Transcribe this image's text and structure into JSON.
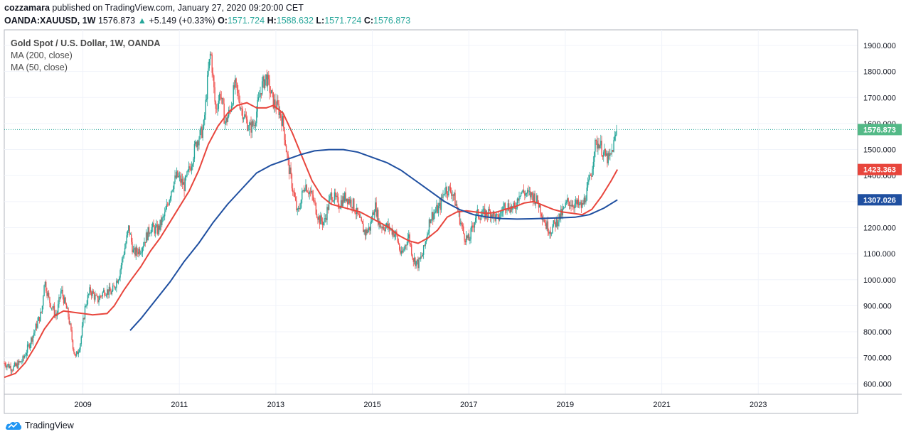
{
  "header": {
    "author": "cozzamara",
    "published_text": "published on TradingView.com, January 27, 2020 09:20:00 CET",
    "symbol": "OANDA:XAUUSD, 1W",
    "last": "1576.873",
    "up_arrow": "▲",
    "change": "+5.149 (+0.33%)",
    "o_label": "O:",
    "o_value": "1571.724",
    "h_label": "H:",
    "h_value": "1588.632",
    "l_label": "L:",
    "l_value": "1571.724",
    "c_label": "C:",
    "c_value": "1576.873"
  },
  "legend": {
    "title": "Gold Spot / U.S. Dollar, 1W, OANDA",
    "ma200": "MA (200, close)",
    "ma50": "MA (50, close)"
  },
  "brand": {
    "name": "TradingView",
    "icon": "tradingview-cloud-icon"
  },
  "colors": {
    "up": "#26a69a",
    "down": "#ef5350",
    "ma50": "#e8453c",
    "ma200": "#1f4fa0",
    "last_price_bg": "#53b987",
    "grid": "#f0f3fa",
    "axis": "#b2b5be"
  },
  "chart_data": {
    "type": "line",
    "title": "Gold Spot / U.S. Dollar, 1W, OANDA",
    "xlabel": "",
    "ylabel": "",
    "x_ticks": [
      "2009",
      "2011",
      "2013",
      "2015",
      "2017",
      "2019",
      "2021",
      "2023"
    ],
    "xlim": [
      2007.37,
      2025.06
    ],
    "y_ticks": [
      "600.000",
      "700.000",
      "800.000",
      "900.000",
      "1000.000",
      "1100.000",
      "1200.000",
      "1300.000",
      "1400.000",
      "1500.000",
      "1600.000",
      "1700.000",
      "1800.000",
      "1900.000"
    ],
    "ylim": [
      560,
      1960
    ],
    "grid": true,
    "price_labels": [
      {
        "name": "last",
        "value": 1576.873,
        "text": "1576.873",
        "color": "#53b987"
      },
      {
        "name": "ma50",
        "value": 1423.363,
        "text": "1423.363",
        "color": "#e8453c"
      },
      {
        "name": "ma200",
        "value": 1307.026,
        "text": "1307.026",
        "color": "#1f4fa0"
      }
    ],
    "price_path": [
      [
        2007.37,
        680
      ],
      [
        2007.55,
        660
      ],
      [
        2007.75,
        690
      ],
      [
        2007.95,
        780
      ],
      [
        2008.15,
        880
      ],
      [
        2008.2,
        1000
      ],
      [
        2008.3,
        920
      ],
      [
        2008.45,
        860
      ],
      [
        2008.55,
        960
      ],
      [
        2008.7,
        860
      ],
      [
        2008.8,
        740
      ],
      [
        2008.85,
        700
      ],
      [
        2008.95,
        760
      ],
      [
        2009.05,
        900
      ],
      [
        2009.15,
        960
      ],
      [
        2009.3,
        920
      ],
      [
        2009.45,
        960
      ],
      [
        2009.6,
        950
      ],
      [
        2009.75,
        1020
      ],
      [
        2009.9,
        1150
      ],
      [
        2009.95,
        1200
      ],
      [
        2010.05,
        1100
      ],
      [
        2010.2,
        1120
      ],
      [
        2010.4,
        1200
      ],
      [
        2010.55,
        1190
      ],
      [
        2010.7,
        1250
      ],
      [
        2010.85,
        1360
      ],
      [
        2010.95,
        1400
      ],
      [
        2011.1,
        1360
      ],
      [
        2011.25,
        1450
      ],
      [
        2011.35,
        1530
      ],
      [
        2011.5,
        1580
      ],
      [
        2011.6,
        1800
      ],
      [
        2011.65,
        1880
      ],
      [
        2011.75,
        1650
      ],
      [
        2011.85,
        1720
      ],
      [
        2011.95,
        1600
      ],
      [
        2012.05,
        1650
      ],
      [
        2012.15,
        1750
      ],
      [
        2012.3,
        1650
      ],
      [
        2012.45,
        1580
      ],
      [
        2012.55,
        1600
      ],
      [
        2012.7,
        1740
      ],
      [
        2012.8,
        1780
      ],
      [
        2012.95,
        1680
      ],
      [
        2013.05,
        1660
      ],
      [
        2013.15,
        1600
      ],
      [
        2013.25,
        1450
      ],
      [
        2013.35,
        1350
      ],
      [
        2013.45,
        1250
      ],
      [
        2013.6,
        1370
      ],
      [
        2013.75,
        1320
      ],
      [
        2013.9,
        1230
      ],
      [
        2014.0,
        1220
      ],
      [
        2014.15,
        1330
      ],
      [
        2014.3,
        1290
      ],
      [
        2014.45,
        1320
      ],
      [
        2014.6,
        1290
      ],
      [
        2014.75,
        1220
      ],
      [
        2014.85,
        1180
      ],
      [
        2014.95,
        1200
      ],
      [
        2015.05,
        1290
      ],
      [
        2015.15,
        1210
      ],
      [
        2015.35,
        1200
      ],
      [
        2015.5,
        1170
      ],
      [
        2015.6,
        1090
      ],
      [
        2015.75,
        1170
      ],
      [
        2015.85,
        1080
      ],
      [
        2015.95,
        1060
      ],
      [
        2016.05,
        1100
      ],
      [
        2016.2,
        1240
      ],
      [
        2016.4,
        1280
      ],
      [
        2016.5,
        1350
      ],
      [
        2016.65,
        1340
      ],
      [
        2016.75,
        1280
      ],
      [
        2016.9,
        1170
      ],
      [
        2017.0,
        1150
      ],
      [
        2017.15,
        1250
      ],
      [
        2017.3,
        1250
      ],
      [
        2017.45,
        1260
      ],
      [
        2017.6,
        1230
      ],
      [
        2017.75,
        1290
      ],
      [
        2017.95,
        1270
      ],
      [
        2018.05,
        1340
      ],
      [
        2018.2,
        1330
      ],
      [
        2018.35,
        1320
      ],
      [
        2018.45,
        1290
      ],
      [
        2018.6,
        1210
      ],
      [
        2018.7,
        1190
      ],
      [
        2018.8,
        1220
      ],
      [
        2018.95,
        1260
      ],
      [
        2019.05,
        1300
      ],
      [
        2019.2,
        1290
      ],
      [
        2019.35,
        1280
      ],
      [
        2019.45,
        1340
      ],
      [
        2019.55,
        1420
      ],
      [
        2019.6,
        1510
      ],
      [
        2019.7,
        1530
      ],
      [
        2019.8,
        1480
      ],
      [
        2019.9,
        1460
      ],
      [
        2019.95,
        1480
      ],
      [
        2020.05,
        1560
      ],
      [
        2020.08,
        1576.873
      ]
    ],
    "series": [
      {
        "name": "MA (50, close)",
        "color": "#e8453c",
        "points": [
          [
            2007.37,
            625
          ],
          [
            2007.6,
            640
          ],
          [
            2007.8,
            680
          ],
          [
            2008.0,
            740
          ],
          [
            2008.2,
            810
          ],
          [
            2008.4,
            860
          ],
          [
            2008.6,
            880
          ],
          [
            2008.8,
            875
          ],
          [
            2009.0,
            870
          ],
          [
            2009.2,
            865
          ],
          [
            2009.5,
            870
          ],
          [
            2009.65,
            900
          ],
          [
            2009.85,
            960
          ],
          [
            2010.0,
            1000
          ],
          [
            2010.2,
            1050
          ],
          [
            2010.4,
            1110
          ],
          [
            2010.6,
            1160
          ],
          [
            2010.8,
            1220
          ],
          [
            2011.0,
            1280
          ],
          [
            2011.2,
            1340
          ],
          [
            2011.4,
            1420
          ],
          [
            2011.6,
            1520
          ],
          [
            2011.8,
            1590
          ],
          [
            2012.0,
            1640
          ],
          [
            2012.2,
            1670
          ],
          [
            2012.4,
            1680
          ],
          [
            2012.6,
            1660
          ],
          [
            2012.8,
            1660
          ],
          [
            2012.95,
            1670
          ],
          [
            2013.15,
            1640
          ],
          [
            2013.35,
            1560
          ],
          [
            2013.55,
            1470
          ],
          [
            2013.75,
            1380
          ],
          [
            2013.95,
            1320
          ],
          [
            2014.15,
            1290
          ],
          [
            2014.35,
            1280
          ],
          [
            2014.55,
            1270
          ],
          [
            2014.75,
            1260
          ],
          [
            2014.95,
            1240
          ],
          [
            2015.15,
            1220
          ],
          [
            2015.35,
            1200
          ],
          [
            2015.55,
            1170
          ],
          [
            2015.75,
            1150
          ],
          [
            2015.95,
            1140
          ],
          [
            2016.15,
            1160
          ],
          [
            2016.35,
            1190
          ],
          [
            2016.55,
            1240
          ],
          [
            2016.75,
            1260
          ],
          [
            2016.95,
            1265
          ],
          [
            2017.15,
            1260
          ],
          [
            2017.35,
            1255
          ],
          [
            2017.55,
            1258
          ],
          [
            2017.75,
            1270
          ],
          [
            2017.95,
            1280
          ],
          [
            2018.15,
            1295
          ],
          [
            2018.35,
            1300
          ],
          [
            2018.55,
            1285
          ],
          [
            2018.75,
            1270
          ],
          [
            2018.95,
            1260
          ],
          [
            2019.15,
            1255
          ],
          [
            2019.35,
            1250
          ],
          [
            2019.55,
            1270
          ],
          [
            2019.75,
            1320
          ],
          [
            2019.95,
            1380
          ],
          [
            2020.08,
            1423.363
          ]
        ]
      },
      {
        "name": "MA (200, close)",
        "color": "#1f4fa0",
        "points": [
          [
            2009.98,
            805
          ],
          [
            2010.2,
            850
          ],
          [
            2010.5,
            920
          ],
          [
            2010.8,
            990
          ],
          [
            2011.1,
            1070
          ],
          [
            2011.4,
            1140
          ],
          [
            2011.7,
            1220
          ],
          [
            2012.0,
            1290
          ],
          [
            2012.3,
            1350
          ],
          [
            2012.6,
            1410
          ],
          [
            2012.9,
            1440
          ],
          [
            2013.2,
            1460
          ],
          [
            2013.5,
            1480
          ],
          [
            2013.8,
            1495
          ],
          [
            2014.1,
            1500
          ],
          [
            2014.4,
            1500
          ],
          [
            2014.7,
            1490
          ],
          [
            2015.0,
            1470
          ],
          [
            2015.3,
            1450
          ],
          [
            2015.6,
            1420
          ],
          [
            2015.9,
            1380
          ],
          [
            2016.2,
            1340
          ],
          [
            2016.5,
            1300
          ],
          [
            2016.8,
            1270
          ],
          [
            2017.1,
            1250
          ],
          [
            2017.4,
            1240
          ],
          [
            2017.7,
            1235
          ],
          [
            2018.0,
            1233
          ],
          [
            2018.3,
            1234
          ],
          [
            2018.6,
            1236
          ],
          [
            2018.9,
            1238
          ],
          [
            2019.2,
            1240
          ],
          [
            2019.5,
            1250
          ],
          [
            2019.8,
            1275
          ],
          [
            2020.08,
            1307.026
          ]
        ]
      }
    ]
  }
}
